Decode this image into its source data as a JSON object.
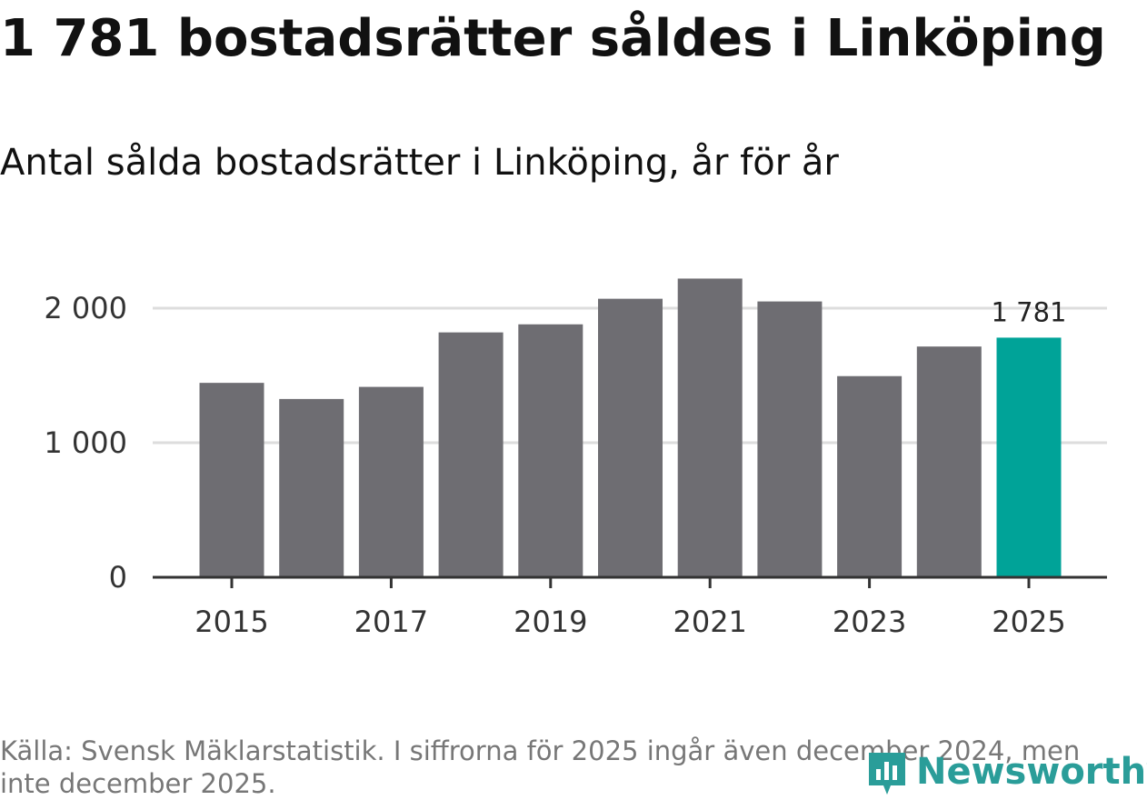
{
  "header": {
    "title": "1 781 bostadsrätter såldes i Linköping",
    "subtitle": "Antal sålda bostadsrätter i Linköping, år för år"
  },
  "chart_data": {
    "type": "bar",
    "title": "1 781 bostadsrätter såldes i Linköping",
    "subtitle": "Antal sålda bostadsrätter i Linköping, år för år",
    "categories": [
      "2015",
      "2016",
      "2017",
      "2018",
      "2019",
      "2020",
      "2021",
      "2022",
      "2023",
      "2024",
      "2025"
    ],
    "values": [
      1445,
      1325,
      1415,
      1820,
      1880,
      2070,
      2220,
      2050,
      1495,
      1715,
      1781
    ],
    "x_tick_labels": [
      "2015",
      "2017",
      "2019",
      "2021",
      "2023",
      "2025"
    ],
    "y_ticks": [
      0,
      1000,
      2000
    ],
    "y_tick_labels": [
      "0",
      "1 000",
      "2 000"
    ],
    "ylim": [
      0,
      2500
    ],
    "highlight": {
      "category": "2025",
      "label": "1 781"
    },
    "grid": true,
    "colors": {
      "bar": "#6e6d72",
      "highlight": "#00a398",
      "grid": "#dddddd",
      "axis": "#333333"
    }
  },
  "footer": {
    "source": "Källa: Svensk Mäklarstatistik. I siffrorna för 2025 ingår även december 2024, men inte december 2025.",
    "logo_text": "Newsworthy",
    "logo_icon": "newsworthy-logo-icon",
    "logo_color": "#2a9d99"
  }
}
